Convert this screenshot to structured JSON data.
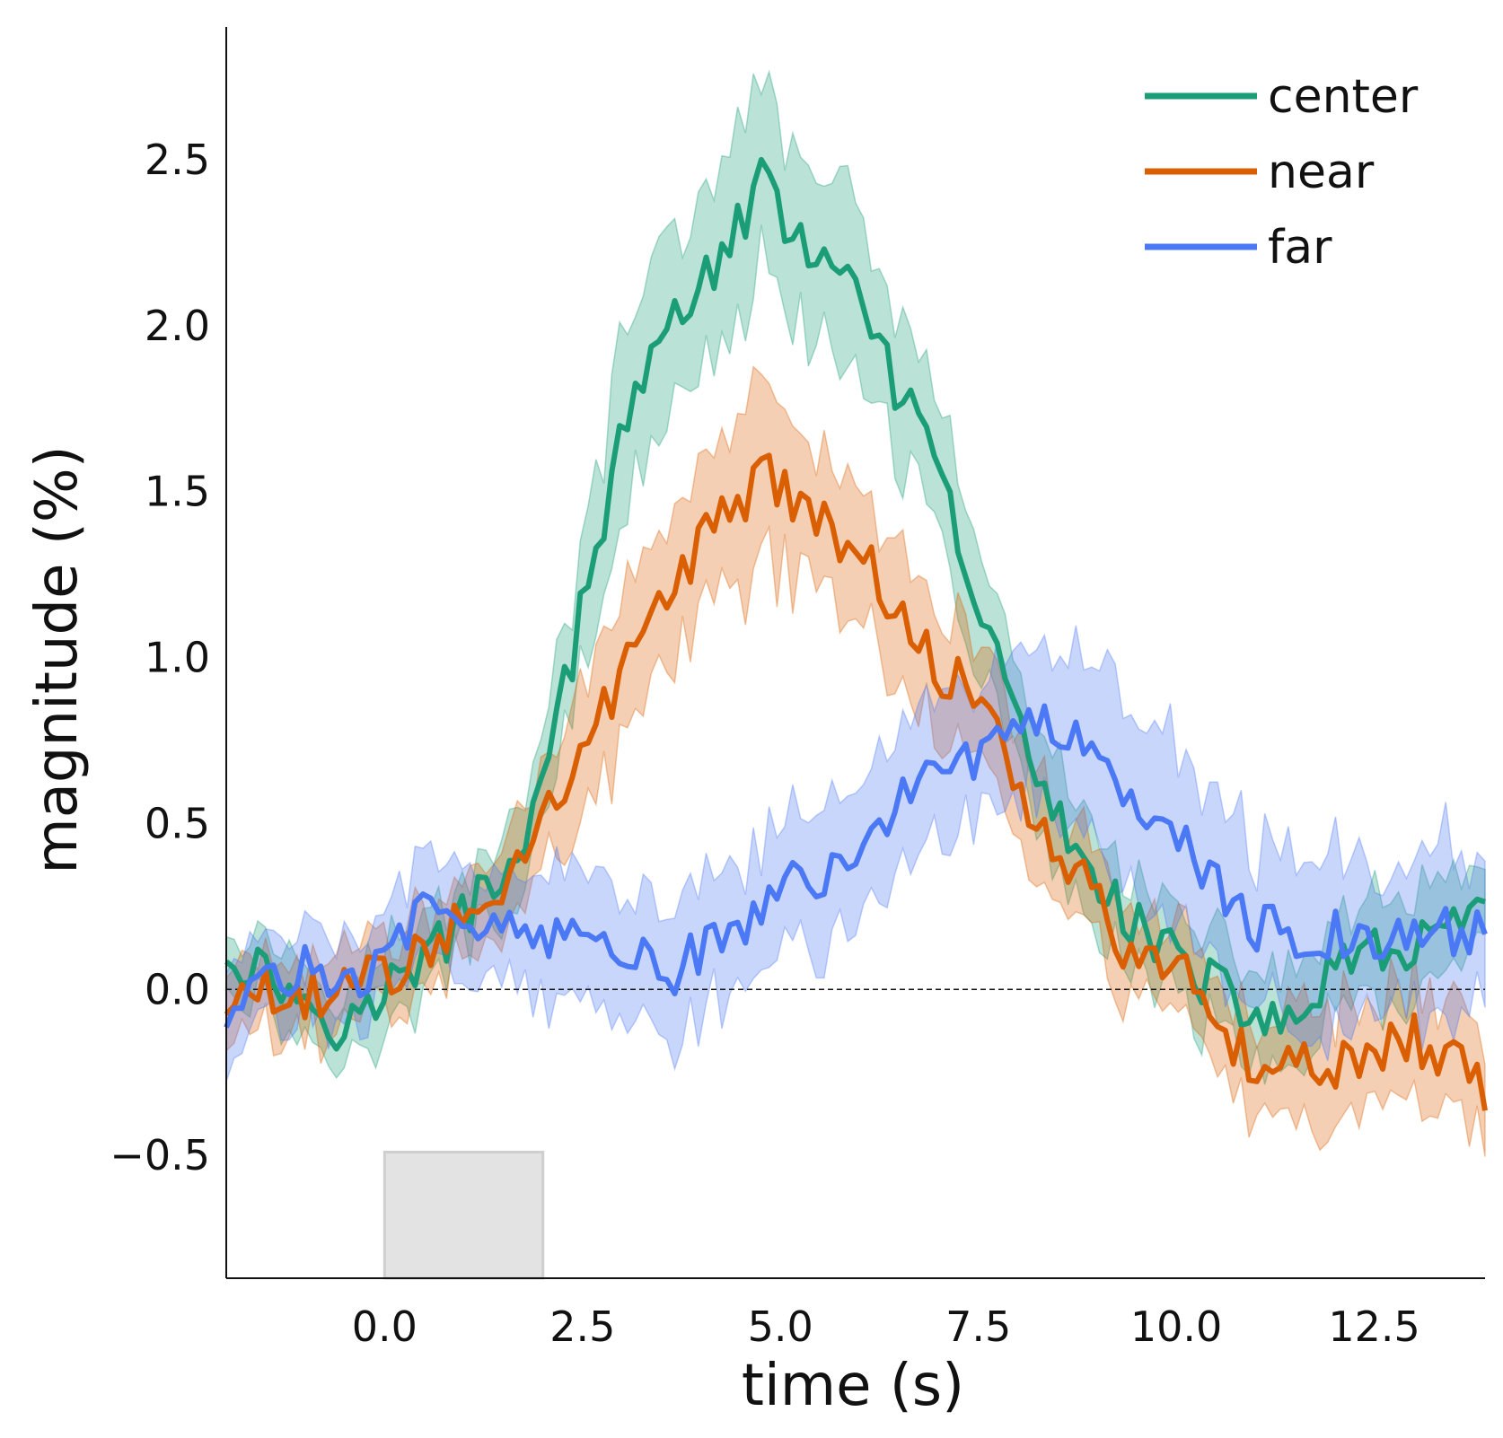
{
  "chart_data": {
    "type": "line",
    "title": "",
    "xlabel": "time (s)",
    "ylabel": "magnitude (%)",
    "xlim": [
      -2.0,
      13.9
    ],
    "ylim": [
      -0.87,
      2.9
    ],
    "x_ticks": [
      0.0,
      2.5,
      5.0,
      7.5,
      10.0,
      12.5
    ],
    "x_tick_labels": [
      "0.0",
      "2.5",
      "5.0",
      "7.5",
      "10.0",
      "12.5"
    ],
    "y_ticks": [
      -0.5,
      0.0,
      0.5,
      1.0,
      1.5,
      2.0,
      2.5
    ],
    "y_tick_labels": [
      "−0.5",
      "0.0",
      "0.5",
      "1.0",
      "1.5",
      "2.0",
      "2.5"
    ],
    "zero_reference_line": true,
    "grid": false,
    "legend_position": "top-right",
    "stimulus_block": {
      "x_start": 0.0,
      "x_end": 2.0,
      "y_bottom": -0.87,
      "y_top": -0.49,
      "color": "#e3e3e3"
    },
    "series": [
      {
        "name": "center",
        "color": "#1b9e77",
        "band_half_width": [
          [
            -2.0,
            0.1
          ],
          [
            -1.0,
            0.12
          ],
          [
            0.0,
            0.13
          ],
          [
            1.0,
            0.1
          ],
          [
            2.0,
            0.15
          ],
          [
            3.0,
            0.25
          ],
          [
            4.0,
            0.25
          ],
          [
            5.0,
            0.28
          ],
          [
            6.0,
            0.25
          ],
          [
            7.0,
            0.2
          ],
          [
            8.0,
            0.15
          ],
          [
            9.0,
            0.13
          ],
          [
            10.0,
            0.12
          ],
          [
            11.0,
            0.15
          ],
          [
            12.0,
            0.15
          ],
          [
            13.9,
            0.13
          ]
        ],
        "keypoints": [
          [
            -2.0,
            0.12
          ],
          [
            -1.5,
            0.05
          ],
          [
            -1.0,
            -0.03
          ],
          [
            -0.5,
            -0.12
          ],
          [
            0.0,
            0.0
          ],
          [
            0.5,
            0.08
          ],
          [
            1.0,
            0.22
          ],
          [
            1.5,
            0.35
          ],
          [
            2.0,
            0.6
          ],
          [
            2.5,
            1.15
          ],
          [
            3.0,
            1.65
          ],
          [
            3.5,
            2.0
          ],
          [
            4.0,
            2.12
          ],
          [
            4.5,
            2.3
          ],
          [
            4.75,
            2.45
          ],
          [
            5.0,
            2.32
          ],
          [
            5.5,
            2.22
          ],
          [
            6.0,
            2.05
          ],
          [
            6.5,
            1.8
          ],
          [
            7.0,
            1.55
          ],
          [
            7.25,
            1.35
          ],
          [
            7.5,
            1.15
          ],
          [
            8.0,
            0.8
          ],
          [
            8.5,
            0.5
          ],
          [
            9.0,
            0.35
          ],
          [
            9.5,
            0.2
          ],
          [
            10.0,
            0.1
          ],
          [
            10.5,
            0.0
          ],
          [
            11.0,
            -0.08
          ],
          [
            11.5,
            -0.1
          ],
          [
            12.0,
            0.05
          ],
          [
            12.5,
            0.1
          ],
          [
            13.0,
            0.15
          ],
          [
            13.9,
            0.2
          ]
        ]
      },
      {
        "name": "near",
        "color": "#d95f02",
        "band_half_width": [
          [
            -2.0,
            0.12
          ],
          [
            -1.0,
            0.12
          ],
          [
            0.0,
            0.12
          ],
          [
            1.0,
            0.12
          ],
          [
            2.0,
            0.15
          ],
          [
            3.0,
            0.22
          ],
          [
            4.0,
            0.25
          ],
          [
            5.0,
            0.25
          ],
          [
            6.0,
            0.2
          ],
          [
            7.0,
            0.18
          ],
          [
            8.0,
            0.16
          ],
          [
            9.0,
            0.14
          ],
          [
            10.0,
            0.13
          ],
          [
            11.0,
            0.14
          ],
          [
            12.0,
            0.17
          ],
          [
            13.9,
            0.17
          ]
        ],
        "keypoints": [
          [
            -2.0,
            -0.05
          ],
          [
            -1.5,
            0.0
          ],
          [
            -1.0,
            -0.05
          ],
          [
            -0.5,
            0.05
          ],
          [
            0.0,
            0.02
          ],
          [
            0.5,
            0.1
          ],
          [
            1.0,
            0.2
          ],
          [
            1.5,
            0.3
          ],
          [
            2.0,
            0.5
          ],
          [
            2.5,
            0.7
          ],
          [
            3.0,
            0.95
          ],
          [
            3.5,
            1.15
          ],
          [
            4.0,
            1.35
          ],
          [
            4.5,
            1.45
          ],
          [
            4.75,
            1.6
          ],
          [
            5.0,
            1.5
          ],
          [
            5.5,
            1.42
          ],
          [
            6.0,
            1.3
          ],
          [
            6.5,
            1.15
          ],
          [
            7.0,
            0.95
          ],
          [
            7.5,
            0.9
          ],
          [
            8.0,
            0.6
          ],
          [
            8.5,
            0.4
          ],
          [
            9.0,
            0.28
          ],
          [
            9.5,
            0.05
          ],
          [
            10.0,
            0.1
          ],
          [
            10.5,
            -0.1
          ],
          [
            11.0,
            -0.25
          ],
          [
            11.5,
            -0.2
          ],
          [
            12.0,
            -0.25
          ],
          [
            12.5,
            -0.2
          ],
          [
            13.0,
            -0.15
          ],
          [
            13.9,
            -0.3
          ]
        ]
      },
      {
        "name": "far",
        "color": "#4b78f5",
        "band_half_width": [
          [
            -2.0,
            0.15
          ],
          [
            -1.0,
            0.13
          ],
          [
            0.0,
            0.12
          ],
          [
            1.0,
            0.16
          ],
          [
            2.0,
            0.18
          ],
          [
            3.0,
            0.18
          ],
          [
            4.0,
            0.18
          ],
          [
            5.0,
            0.2
          ],
          [
            6.0,
            0.2
          ],
          [
            7.0,
            0.2
          ],
          [
            8.0,
            0.22
          ],
          [
            9.0,
            0.27
          ],
          [
            10.0,
            0.28
          ],
          [
            11.0,
            0.25
          ],
          [
            12.0,
            0.25
          ],
          [
            13.9,
            0.25
          ]
        ],
        "keypoints": [
          [
            -2.0,
            -0.1
          ],
          [
            -1.5,
            0.0
          ],
          [
            -1.0,
            0.05
          ],
          [
            -0.5,
            0.0
          ],
          [
            0.0,
            0.1
          ],
          [
            0.5,
            0.25
          ],
          [
            1.0,
            0.25
          ],
          [
            1.5,
            0.2
          ],
          [
            2.0,
            0.15
          ],
          [
            2.5,
            0.15
          ],
          [
            3.0,
            0.1
          ],
          [
            3.5,
            0.05
          ],
          [
            4.0,
            0.1
          ],
          [
            4.5,
            0.2
          ],
          [
            5.0,
            0.3
          ],
          [
            5.5,
            0.35
          ],
          [
            6.0,
            0.45
          ],
          [
            6.5,
            0.55
          ],
          [
            7.0,
            0.65
          ],
          [
            7.5,
            0.72
          ],
          [
            8.0,
            0.75
          ],
          [
            8.5,
            0.8
          ],
          [
            9.0,
            0.7
          ],
          [
            9.5,
            0.55
          ],
          [
            10.0,
            0.45
          ],
          [
            10.5,
            0.3
          ],
          [
            11.0,
            0.2
          ],
          [
            11.5,
            0.15
          ],
          [
            12.0,
            0.18
          ],
          [
            12.5,
            0.15
          ],
          [
            13.0,
            0.15
          ],
          [
            13.9,
            0.2
          ]
        ]
      }
    ]
  }
}
